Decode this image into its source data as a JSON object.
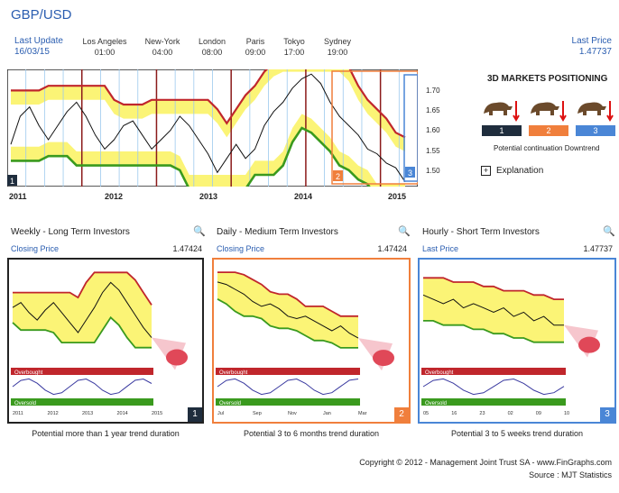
{
  "pair": "GBP/USD",
  "last_update": {
    "label": "Last Update",
    "date": "16/03/15"
  },
  "cities": [
    {
      "name": "Los Angeles",
      "time": "01:00"
    },
    {
      "name": "New-York",
      "time": "04:00"
    },
    {
      "name": "London",
      "time": "08:00"
    },
    {
      "name": "Paris",
      "time": "09:00"
    },
    {
      "name": "Tokyo",
      "time": "17:00"
    },
    {
      "name": "Sydney",
      "time": "19:00"
    }
  ],
  "last_price": {
    "label": "Last Price",
    "value": "1.47737"
  },
  "colors": {
    "accent": "#2a5db0",
    "band_fill": "#fbf476",
    "upper": "#c0262c",
    "lower": "#3a9a1e",
    "badge1": "#1f2d3d",
    "badge2": "#f07f3c",
    "badge3": "#4a86d6"
  },
  "chart_data": [
    {
      "type": "line",
      "name": "main",
      "x": [
        "2011",
        "2012",
        "2013",
        "2014",
        "2015"
      ],
      "ylabels": [
        "1.70",
        "1.65",
        "1.60",
        "1.55",
        "1.50"
      ],
      "ylim": [
        1.47,
        1.72
      ],
      "price": [
        1.56,
        1.62,
        1.64,
        1.6,
        1.57,
        1.6,
        1.63,
        1.65,
        1.62,
        1.58,
        1.55,
        1.57,
        1.6,
        1.61,
        1.58,
        1.55,
        1.57,
        1.59,
        1.62,
        1.6,
        1.57,
        1.54,
        1.5,
        1.53,
        1.56,
        1.53,
        1.55,
        1.6,
        1.63,
        1.65,
        1.68,
        1.7,
        1.71,
        1.69,
        1.65,
        1.62,
        1.6,
        1.58,
        1.55,
        1.54,
        1.52,
        1.51,
        1.48
      ],
      "markers": [
        "1",
        "2",
        "3"
      ]
    },
    {
      "type": "line",
      "name": "weekly",
      "x": [
        "2011",
        "2012",
        "2013",
        "2014",
        "2015"
      ],
      "price": [
        1.6,
        1.62,
        1.58,
        1.55,
        1.59,
        1.62,
        1.58,
        1.54,
        1.5,
        1.55,
        1.6,
        1.66,
        1.7,
        1.67,
        1.62,
        1.57,
        1.52,
        1.48
      ]
    },
    {
      "type": "line",
      "name": "daily",
      "x": [
        "Jul",
        "Sep",
        "Nov",
        "Jan",
        "Mar"
      ],
      "x_sub": "2015",
      "price": [
        1.71,
        1.7,
        1.68,
        1.66,
        1.63,
        1.61,
        1.62,
        1.6,
        1.57,
        1.56,
        1.57,
        1.55,
        1.53,
        1.51,
        1.53,
        1.5,
        1.48
      ]
    },
    {
      "type": "line",
      "name": "hourly",
      "x": [
        "05",
        "16",
        "23",
        "02",
        "09",
        "10"
      ],
      "x_sub": "Mar",
      "price": [
        1.55,
        1.54,
        1.53,
        1.54,
        1.52,
        1.53,
        1.52,
        1.51,
        1.52,
        1.5,
        1.51,
        1.49,
        1.5,
        1.48,
        1.48
      ]
    }
  ],
  "positioning": {
    "title": "3D MARKETS POSITIONING",
    "badges": [
      "1",
      "2",
      "3"
    ],
    "caption": "Potential continuation Downtrend",
    "explanation": "Explanation"
  },
  "panels": [
    {
      "title": "Weekly - Long Term Investors",
      "price_label": "Closing Price",
      "price": "1.47424",
      "badge": "1",
      "footer": "Potential more than 1 year trend duration",
      "overbought": "Overbought",
      "oversold": "Oversold"
    },
    {
      "title": "Daily - Medium Term Investors",
      "price_label": "Closing Price",
      "price": "1.47424",
      "badge": "2",
      "footer": "Potential 3 to 6 months trend duration",
      "overbought": "Overbought",
      "oversold": "Oversold"
    },
    {
      "title": "Hourly - Short Term Investors",
      "price_label": "Last Price",
      "price": "1.47737",
      "badge": "3",
      "footer": "Potential 3 to 5 weeks trend duration",
      "overbought": "Overbought",
      "oversold": "Oversold"
    }
  ],
  "copyright": "Copyright © 2012 - Management Joint Trust SA - www.FinGraphs.com",
  "source": "Source : MJT Statistics"
}
